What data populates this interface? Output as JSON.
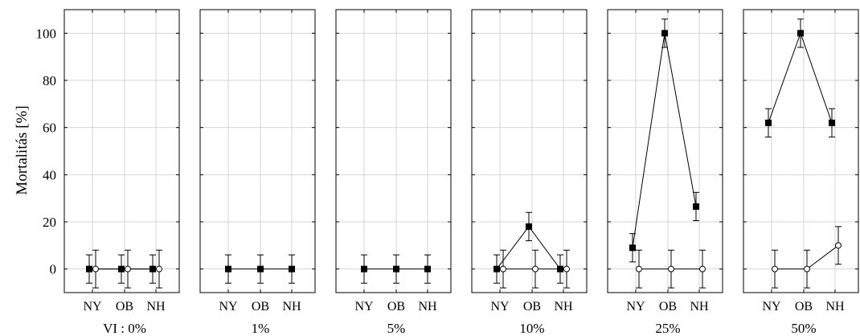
{
  "chart_data": {
    "type": "line",
    "ylabel": "Mortalitás [%]",
    "ylim": [
      -10,
      110
    ],
    "yticks": [
      0,
      20,
      40,
      60,
      80,
      100
    ],
    "grid": true,
    "categories": [
      "NY",
      "OB",
      "NH"
    ],
    "facets": [
      {
        "label": "VI : 0%",
        "series": [
          {
            "marker": "filled-square",
            "values": [
              0,
              0,
              0
            ],
            "err": [
              6,
              6,
              6
            ]
          },
          {
            "marker": "open-circle",
            "values": [
              0,
              0,
              0
            ],
            "err": [
              8,
              8,
              8
            ]
          }
        ]
      },
      {
        "label": "1%",
        "series": [
          {
            "marker": "filled-square",
            "values": [
              0,
              0,
              0
            ],
            "err": [
              6,
              6,
              6
            ]
          }
        ]
      },
      {
        "label": "5%",
        "series": [
          {
            "marker": "filled-square",
            "values": [
              0,
              0,
              0
            ],
            "err": [
              6,
              6,
              6
            ]
          }
        ]
      },
      {
        "label": "10%",
        "series": [
          {
            "marker": "filled-square",
            "values": [
              0,
              18,
              0
            ],
            "err": [
              6,
              6,
              6
            ]
          },
          {
            "marker": "open-circle",
            "values": [
              0,
              0,
              0
            ],
            "err": [
              8,
              8,
              8
            ]
          }
        ]
      },
      {
        "label": "25%",
        "series": [
          {
            "marker": "filled-square",
            "values": [
              9,
              100,
              26.5
            ],
            "err": [
              6,
              6,
              6
            ]
          },
          {
            "marker": "open-circle",
            "values": [
              0,
              0,
              0
            ],
            "err": [
              8,
              8,
              8
            ]
          }
        ]
      },
      {
        "label": "50%",
        "series": [
          {
            "marker": "filled-square",
            "values": [
              62,
              100,
              62
            ],
            "err": [
              6,
              6,
              6
            ]
          },
          {
            "marker": "open-circle",
            "values": [
              0,
              0,
              10
            ],
            "err": [
              8,
              8,
              8
            ]
          }
        ]
      }
    ]
  }
}
